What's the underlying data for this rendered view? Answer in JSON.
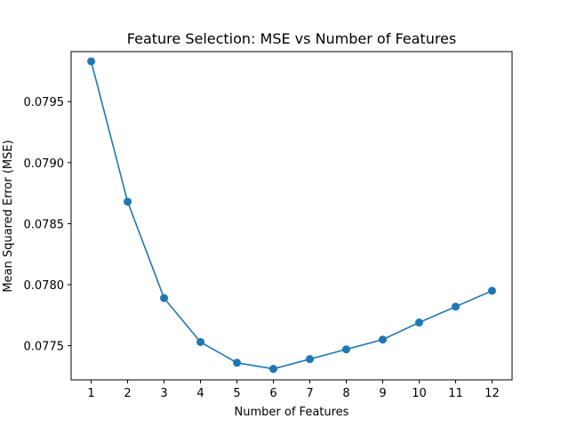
{
  "chart_data": {
    "type": "line",
    "title": "Feature Selection: MSE vs Number of Features",
    "xlabel": "Number of Features",
    "ylabel": "Mean Squared Error (MSE)",
    "x": [
      1,
      2,
      3,
      4,
      5,
      6,
      7,
      8,
      9,
      10,
      11,
      12
    ],
    "xticks": [
      "1",
      "2",
      "3",
      "4",
      "5",
      "6",
      "7",
      "8",
      "9",
      "10",
      "11",
      "12"
    ],
    "xlim": [
      0.45,
      12.55
    ],
    "ylim": [
      0.07722,
      0.07991
    ],
    "yticks": [
      "0.0775",
      "0.0780",
      "0.0785",
      "0.0790",
      "0.0795"
    ],
    "series": [
      {
        "values": [
          0.07983,
          0.07868,
          0.07789,
          0.07753,
          0.07736,
          0.07731,
          0.07739,
          0.07747,
          0.07755,
          0.07769,
          0.07782,
          0.07795
        ],
        "color": "#1f77b4",
        "marker": "circle"
      }
    ],
    "grid": false,
    "legend": "none"
  }
}
